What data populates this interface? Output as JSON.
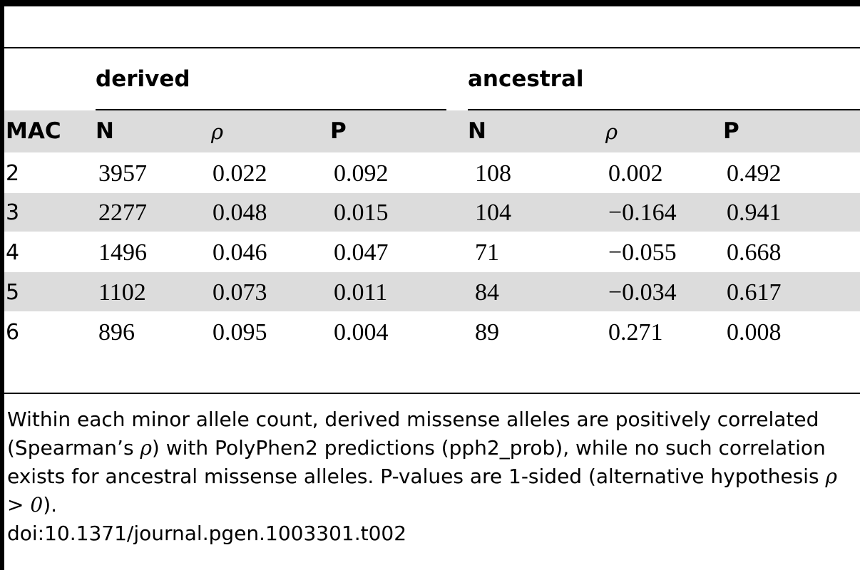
{
  "table": {
    "group_headers": [
      "derived",
      "ancestral"
    ],
    "columns": [
      "MAC",
      "N",
      "ρ",
      "P",
      "N",
      "ρ",
      "P"
    ],
    "rows": [
      [
        "2",
        "3957",
        "0.022",
        "0.092",
        "108",
        "0.002",
        "0.492"
      ],
      [
        "3",
        "2277",
        "0.048",
        "0.015",
        "104",
        "−0.164",
        "0.941"
      ],
      [
        "4",
        "1496",
        "0.046",
        "0.047",
        "71",
        "−0.055",
        "0.668"
      ],
      [
        "5",
        "1102",
        "0.073",
        "0.011",
        "84",
        "−0.034",
        "0.617"
      ],
      [
        "6",
        "896",
        "0.095",
        "0.004",
        "89",
        "0.271",
        "0.008"
      ]
    ]
  },
  "footnote": {
    "part1": "Within each minor allele count, derived missense alleles are positively correlated (Spearman’s ",
    "sym1": "ρ",
    "part2": ") with PolyPhen2 predictions (pph2_prob), while no such correlation exists for ancestral missense alleles. P-values are 1-sided (alternative hypothesis ",
    "sym2": "ρ > 0",
    "part3": ").",
    "doi": "doi:10.1371/journal.pgen.1003301.t002"
  },
  "colors": {
    "row_shade": "#dcdcdc",
    "rule": "#000000"
  }
}
